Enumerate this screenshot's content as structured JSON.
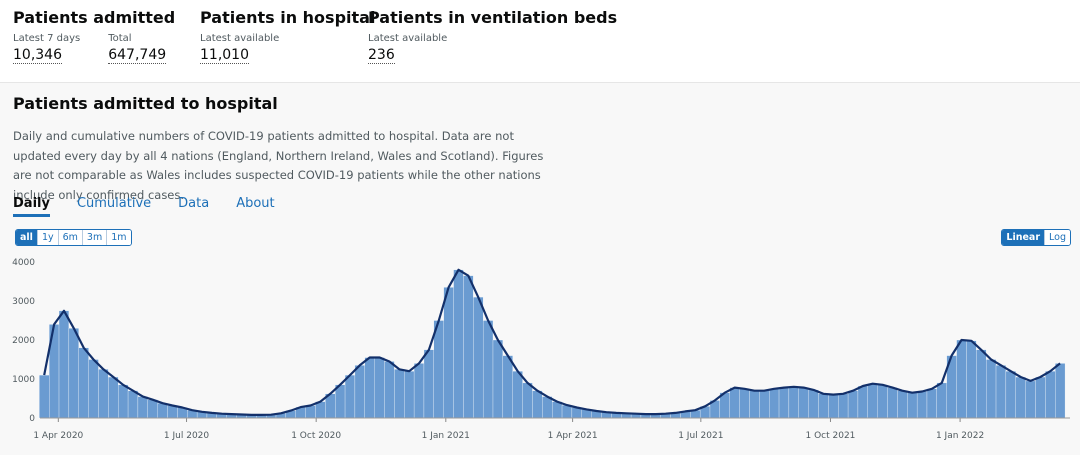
{
  "header": {
    "stats": [
      {
        "title": "Patients admitted",
        "items": [
          {
            "label": "Latest 7 days",
            "value": "10,346"
          },
          {
            "label": "Total",
            "value": "647,749"
          }
        ]
      },
      {
        "title": "Patients in hospital",
        "items": [
          {
            "label": "Latest available",
            "value": "11,010"
          }
        ]
      },
      {
        "title": "Patients in ventilation beds",
        "items": [
          {
            "label": "Latest available",
            "value": "236"
          }
        ]
      }
    ]
  },
  "section": {
    "title": "Patients admitted to hospital",
    "description": "Daily and cumulative numbers of COVID-19 patients admitted to hospital. Data are not updated every day by all 4 nations (England, Northern Ireland, Wales and Scotland). Figures are not comparable as Wales includes suspected COVID-19 patients while the other nations include only confirmed cases.",
    "tabs": [
      "Daily",
      "Cumulative",
      "Data",
      "About"
    ],
    "range_buttons": [
      "all",
      "1y",
      "6m",
      "3m",
      "1m"
    ],
    "scale_buttons": [
      "Linear",
      "Log"
    ]
  },
  "chart_data": {
    "type": "bar",
    "x": [
      "2020-03-22",
      "2020-03-29",
      "2020-04-05",
      "2020-04-12",
      "2020-04-19",
      "2020-04-26",
      "2020-05-03",
      "2020-05-10",
      "2020-05-17",
      "2020-05-24",
      "2020-05-31",
      "2020-06-07",
      "2020-06-14",
      "2020-06-21",
      "2020-06-28",
      "2020-07-05",
      "2020-07-12",
      "2020-07-19",
      "2020-07-26",
      "2020-08-02",
      "2020-08-09",
      "2020-08-16",
      "2020-08-23",
      "2020-08-30",
      "2020-09-06",
      "2020-09-13",
      "2020-09-20",
      "2020-09-27",
      "2020-10-04",
      "2020-10-11",
      "2020-10-18",
      "2020-10-25",
      "2020-11-01",
      "2020-11-08",
      "2020-11-15",
      "2020-11-22",
      "2020-11-29",
      "2020-12-06",
      "2020-12-13",
      "2020-12-20",
      "2020-12-27",
      "2021-01-03",
      "2021-01-10",
      "2021-01-17",
      "2021-01-24",
      "2021-01-31",
      "2021-02-07",
      "2021-02-14",
      "2021-02-21",
      "2021-02-28",
      "2021-03-07",
      "2021-03-14",
      "2021-03-21",
      "2021-03-28",
      "2021-04-04",
      "2021-04-11",
      "2021-04-18",
      "2021-04-25",
      "2021-05-02",
      "2021-05-09",
      "2021-05-16",
      "2021-05-23",
      "2021-05-30",
      "2021-06-06",
      "2021-06-13",
      "2021-06-20",
      "2021-06-27",
      "2021-07-04",
      "2021-07-11",
      "2021-07-18",
      "2021-07-25",
      "2021-08-01",
      "2021-08-08",
      "2021-08-15",
      "2021-08-22",
      "2021-08-29",
      "2021-09-05",
      "2021-09-12",
      "2021-09-19",
      "2021-09-26",
      "2021-10-03",
      "2021-10-10",
      "2021-10-17",
      "2021-10-24",
      "2021-10-31",
      "2021-11-07",
      "2021-11-14",
      "2021-11-21",
      "2021-11-28",
      "2021-12-05",
      "2021-12-12",
      "2021-12-19",
      "2021-12-26",
      "2022-01-02",
      "2022-01-09",
      "2022-01-16",
      "2022-01-23",
      "2022-01-30",
      "2022-02-06",
      "2022-02-13",
      "2022-02-20",
      "2022-02-27",
      "2022-03-06",
      "2022-03-13"
    ],
    "values": [
      1100,
      2400,
      2750,
      2300,
      1800,
      1500,
      1250,
      1050,
      850,
      700,
      550,
      470,
      380,
      320,
      270,
      200,
      160,
      130,
      110,
      100,
      90,
      80,
      80,
      85,
      120,
      190,
      280,
      320,
      420,
      620,
      850,
      1100,
      1350,
      1550,
      1550,
      1450,
      1250,
      1200,
      1400,
      1750,
      2500,
      3350,
      3800,
      3650,
      3100,
      2500,
      2000,
      1600,
      1200,
      900,
      700,
      550,
      420,
      330,
      270,
      220,
      180,
      150,
      130,
      120,
      110,
      100,
      100,
      110,
      130,
      170,
      200,
      300,
      450,
      650,
      780,
      750,
      700,
      700,
      750,
      780,
      800,
      780,
      720,
      620,
      600,
      620,
      700,
      820,
      880,
      850,
      780,
      700,
      650,
      680,
      750,
      900,
      1600,
      2000,
      1980,
      1750,
      1500,
      1350,
      1200,
      1050,
      950,
      1050,
      1200,
      1400
    ],
    "color": "#6a9bd1",
    "line_color": "#13306a",
    "xlim": [
      "2020-03-19",
      "2022-03-20"
    ],
    "xticks": [
      {
        "value": "2020-04-01",
        "label": "1 Apr 2020"
      },
      {
        "value": "2020-07-01",
        "label": "1 Jul 2020"
      },
      {
        "value": "2020-10-01",
        "label": "1 Oct 2020"
      },
      {
        "value": "2021-01-01",
        "label": "1 Jan 2021"
      },
      {
        "value": "2021-04-01",
        "label": "1 Apr 2021"
      },
      {
        "value": "2021-07-01",
        "label": "1 Jul 2021"
      },
      {
        "value": "2021-10-01",
        "label": "1 Oct 2021"
      },
      {
        "value": "2022-01-01",
        "label": "1 Jan 2022"
      }
    ],
    "ylim": [
      0,
      4000
    ],
    "yticks": [
      0,
      1000,
      2000,
      3000,
      4000
    ],
    "grid": false
  }
}
